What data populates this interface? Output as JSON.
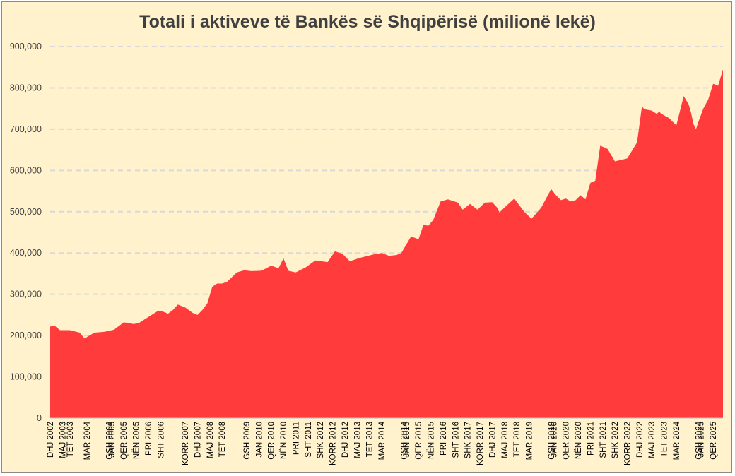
{
  "colors": {
    "background": "#fff2cc",
    "area": "#ff3b3b",
    "grid": "#d9d9d9",
    "axis_text": "#404040"
  },
  "chart_data": {
    "type": "area",
    "title": "Totali i aktiveve të Bankës së Shqipërisë (milionë lekë)",
    "xlabel": "",
    "ylabel": "",
    "ylim": [
      0,
      900000
    ],
    "yticks": [
      0,
      100000,
      200000,
      300000,
      400000,
      500000,
      600000,
      700000,
      800000,
      900000
    ],
    "ytick_labels": [
      "0",
      "100,000",
      "200,000",
      "300,000",
      "400,000",
      "500,000",
      "600,000",
      "700,000",
      "800,000",
      "900,000"
    ],
    "grid": "horizontal dashed",
    "legend": "none",
    "x_tick_labels": [
      "DHJ 2002",
      "MAJ 2003",
      "TET 2003",
      "MAR 2004",
      "GSH 2004",
      "JAN 2005",
      "QER 2005",
      "NËN 2005",
      "PRI 2006",
      "SHT 2006",
      "KORR 2007",
      "DHJ 2007",
      "MAJ 2008",
      "TET 2008",
      "GSH 2009",
      "JAN 2010",
      "QER 2010",
      "NËN 2010",
      "PRI 2011",
      "SHT 2011",
      "SHK 2012",
      "KORR 2012",
      "DHJ 2012",
      "MAJ 2013",
      "TET 2013",
      "MAR 2014",
      "GSH 2014",
      "JAN 2015",
      "QER 2015",
      "NËN 2015",
      "PRI 2016",
      "SHT 2016",
      "SHK 2017",
      "KORR 2017",
      "DHJ 2017",
      "MAJ 2018",
      "TET 2018",
      "MAR 2019",
      "GSH 2019",
      "JAN 2020",
      "QER 2020",
      "NËN 2020",
      "PRI 2021",
      "SHT 2021",
      "SHK 2022",
      "KORR 2022",
      "DHJ 2022",
      "MAJ 2023",
      "TET 2023",
      "MAR 2024",
      "GSH 2024",
      "JAN 2025",
      "QER 2025"
    ],
    "x_tick_months": [
      0,
      5,
      8,
      15,
      24,
      25,
      30,
      35,
      40,
      45,
      55,
      60,
      65,
      70,
      80,
      85,
      90,
      95,
      100,
      105,
      110,
      115,
      120,
      125,
      130,
      135,
      144,
      145,
      150,
      155,
      160,
      165,
      170,
      175,
      180,
      185,
      190,
      195,
      204,
      205,
      210,
      215,
      220,
      225,
      230,
      235,
      240,
      245,
      250,
      255,
      264,
      265,
      270
    ],
    "x_months_total": 274,
    "series": [
      {
        "x": [
          0,
          2,
          4,
          8,
          12,
          14,
          18,
          22,
          26,
          30,
          34,
          36,
          40,
          44,
          46,
          48,
          50,
          52,
          55,
          58,
          60,
          62,
          64,
          66,
          68,
          70,
          72,
          76,
          79,
          82,
          86,
          90,
          93,
          95,
          97,
          100,
          104,
          108,
          113,
          116,
          119,
          122,
          126,
          132,
          135,
          138,
          141,
          143,
          147,
          150,
          152,
          154,
          156,
          159,
          162,
          166,
          168,
          171,
          174,
          177,
          180,
          182,
          183,
          185,
          189,
          193,
          196,
          200,
          204,
          206,
          208,
          210,
          212,
          214,
          216,
          218,
          220,
          222,
          224,
          227,
          230,
          235,
          239,
          241,
          242,
          245,
          247,
          248,
          249,
          251,
          252,
          255,
          258,
          260,
          261,
          262,
          263,
          264,
          266,
          268,
          270,
          272,
          274
        ],
        "values": [
          222000,
          223000,
          213000,
          213000,
          207000,
          193000,
          207000,
          209000,
          214000,
          232000,
          228000,
          230000,
          245000,
          260000,
          258000,
          253000,
          262000,
          275000,
          268000,
          255000,
          250000,
          262000,
          278000,
          318000,
          326000,
          326000,
          330000,
          353000,
          358000,
          356000,
          357000,
          369000,
          363000,
          387000,
          357000,
          353000,
          365000,
          382000,
          378000,
          404000,
          398000,
          380000,
          388000,
          397000,
          400000,
          393000,
          395000,
          400000,
          440000,
          433000,
          468000,
          466000,
          480000,
          525000,
          530000,
          522000,
          505000,
          519000,
          505000,
          522000,
          523000,
          510000,
          498000,
          510000,
          532000,
          500000,
          483000,
          510000,
          555000,
          540000,
          528000,
          532000,
          525000,
          528000,
          540000,
          530000,
          570000,
          575000,
          660000,
          652000,
          622000,
          629000,
          668000,
          755000,
          748000,
          745000,
          737000,
          742000,
          737000,
          730000,
          727000,
          709000,
          780000,
          760000,
          740000,
          712000,
          700000,
          718000,
          750000,
          772000,
          810000,
          805000,
          845000
        ]
      }
    ]
  }
}
